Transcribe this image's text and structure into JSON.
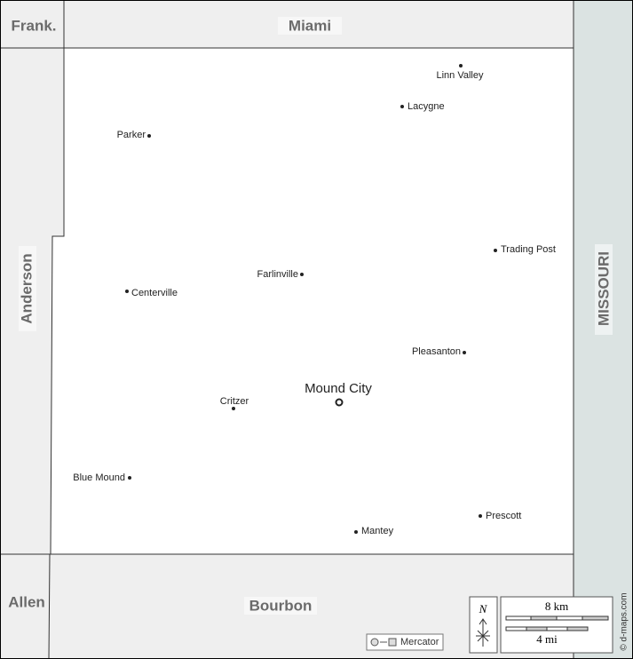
{
  "neighbors": {
    "north_west": "Frank.",
    "north": "Miami",
    "west": "Anderson",
    "south_west": "Allen",
    "south": "Bourbon",
    "east": "MISSOURI"
  },
  "towns": [
    {
      "label": "Linn Valley"
    },
    {
      "label": "Lacygne"
    },
    {
      "label": "Parker"
    },
    {
      "label": "Trading Post"
    },
    {
      "label": "Farlinville"
    },
    {
      "label": "Centerville"
    },
    {
      "label": "Pleasanton"
    },
    {
      "label": "Critzer"
    },
    {
      "label": "Blue Mound"
    },
    {
      "label": "Prescott"
    },
    {
      "label": "Mantey"
    }
  ],
  "seat": "Mound City",
  "compass": "N",
  "scale": {
    "km": "8 km",
    "mi": "4 mi"
  },
  "projection": "Mercator",
  "credit": "© d-maps.com"
}
